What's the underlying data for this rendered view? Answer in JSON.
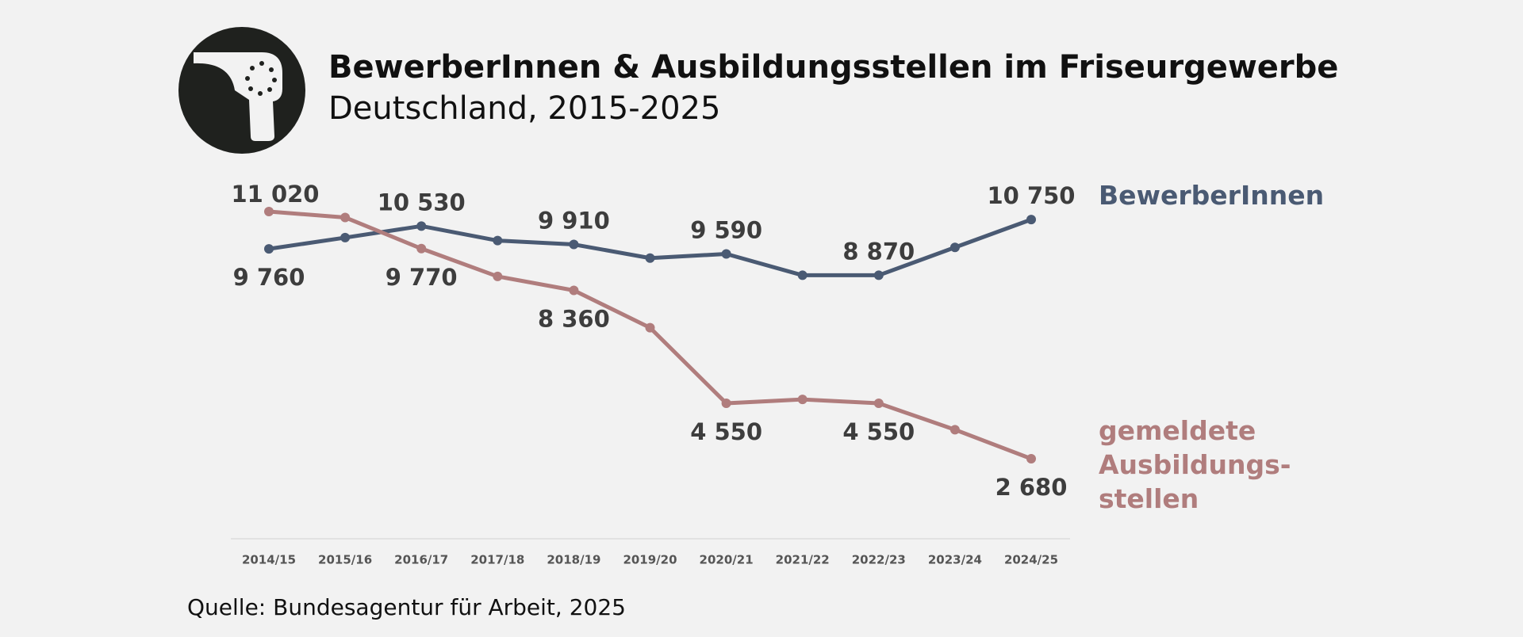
{
  "chart_data": {
    "type": "line",
    "title": "BewerberInnen & Ausbildungsstellen im Friseurgewerbe",
    "subtitle": "Deutschland, 2015-2025",
    "source": "Quelle: Bundesagentur für Arbeit, 2025",
    "categories": [
      "2014/15",
      "2015/16",
      "2016/17",
      "2017/18",
      "2018/19",
      "2019/20",
      "2020/21",
      "2021/22",
      "2022/23",
      "2023/24",
      "2024/25"
    ],
    "series": [
      {
        "name": "BewerberInnen",
        "color": "#4a5a73",
        "values": [
          9760,
          10140,
          10530,
          10040,
          9910,
          9450,
          9590,
          8870,
          8870,
          9810,
          10750
        ],
        "value_labels": [
          "9 760",
          null,
          "10 530",
          null,
          "9 910",
          null,
          "9 590",
          null,
          "8 870",
          null,
          "10 750"
        ]
      },
      {
        "name": "gemeldete\nAusbildungs-\nstellen",
        "color": "#b07d7d",
        "values": [
          11020,
          10820,
          9770,
          8830,
          8360,
          7100,
          4550,
          4680,
          4550,
          3660,
          2680
        ],
        "value_labels": [
          "11 020",
          null,
          "9 770",
          null,
          "8 360",
          null,
          "4 550",
          null,
          "4 550",
          null,
          "2 680"
        ]
      }
    ]
  }
}
